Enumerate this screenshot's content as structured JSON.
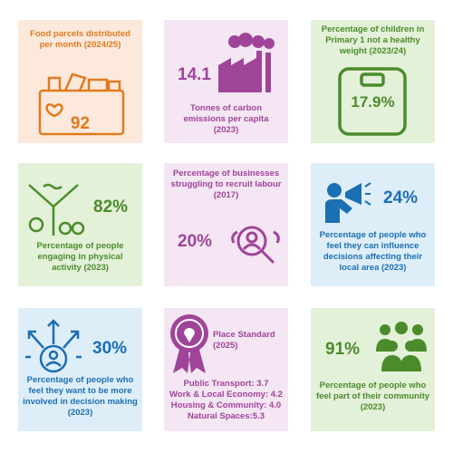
{
  "cards": [
    {
      "title": "Food parcels distributed per month (2024/25)",
      "value": "92"
    },
    {
      "value": "14.1",
      "title": "Tonnes of carbon emissions per capita (2023)"
    },
    {
      "title": "Percentage of children in Primary 1 not a healthy weight (2023/24)",
      "value": "17.9%"
    },
    {
      "value": "82%",
      "title": "Percentage of people engaging in physical activity (2023)"
    },
    {
      "title": "Percentage of businesses struggling to recruit labour (2017)",
      "value": "20%"
    },
    {
      "value": "24%",
      "title": "Percentage of people who feel they can influence decisions affecting their local area (2023)"
    },
    {
      "value": "30%",
      "title": "Percentage of people who feel they want to be more involved in decision making (2023)"
    },
    {
      "title": "Place Standard (2025)",
      "items": [
        "Public Transport: 3.7",
        "Work & Local Economy: 4.2",
        "Housing & Community: 4.0",
        "Natural Spaces:5.3"
      ]
    },
    {
      "value": "91%",
      "title": "Percentage of people who feel part of their community (2023)"
    }
  ]
}
